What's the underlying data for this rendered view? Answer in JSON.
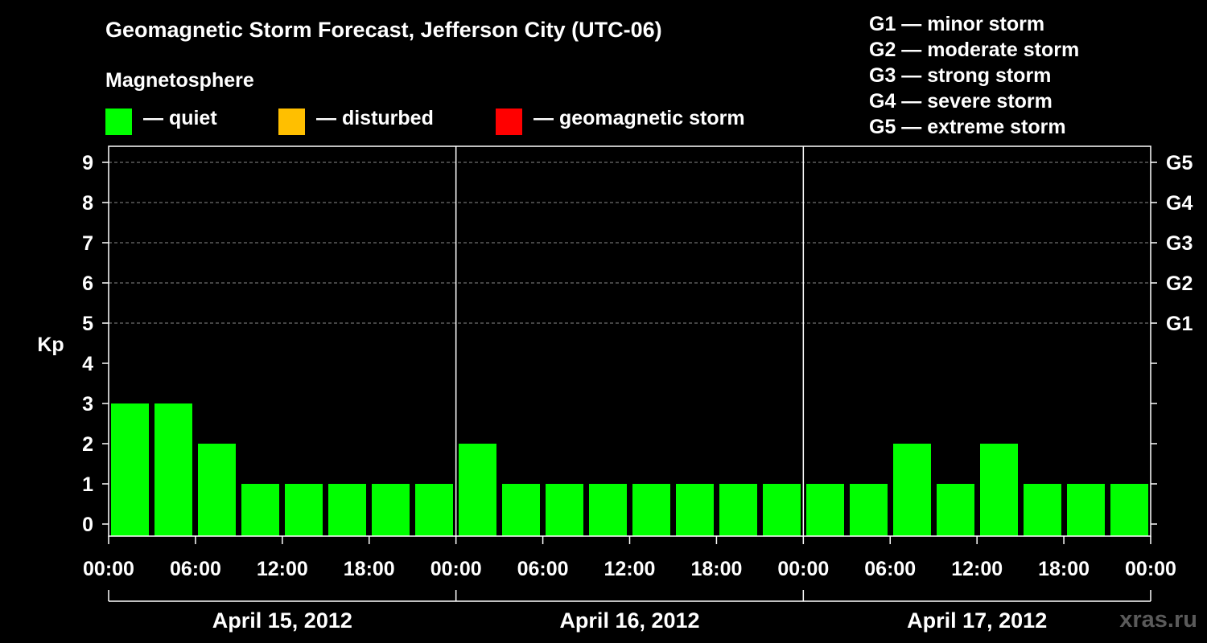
{
  "chart_data": {
    "type": "bar",
    "title": "Geomagnetic Storm Forecast, Jefferson City (UTC-06)",
    "subtitle": "Magnetosphere",
    "ylabel": "Kp",
    "ylim": [
      0,
      9
    ],
    "yticks": [
      "0",
      "1",
      "2",
      "3",
      "4",
      "5",
      "6",
      "7",
      "8",
      "9"
    ],
    "right_ticks": [
      {
        "kp": 5,
        "label": "G1"
      },
      {
        "kp": 6,
        "label": "G2"
      },
      {
        "kp": 7,
        "label": "G3"
      },
      {
        "kp": 8,
        "label": "G4"
      },
      {
        "kp": 9,
        "label": "G5"
      }
    ],
    "xtick_labels": [
      "00:00",
      "06:00",
      "12:00",
      "18:00",
      "00:00",
      "06:00",
      "12:00",
      "18:00",
      "00:00",
      "06:00",
      "12:00",
      "18:00",
      "00:00"
    ],
    "days": [
      "April 15, 2012",
      "April 16, 2012",
      "April 17, 2012"
    ],
    "interval_hours": 3,
    "values": [
      3,
      3,
      2,
      1,
      1,
      1,
      1,
      1,
      2,
      1,
      1,
      1,
      1,
      1,
      1,
      1,
      1,
      1,
      2,
      1,
      2,
      1,
      1,
      1
    ],
    "legend": [
      {
        "label": "— quiet",
        "color": "#00ff00"
      },
      {
        "label": "— disturbed",
        "color": "#ffbf00"
      },
      {
        "label": "— geomagnetic storm",
        "color": "#ff0000"
      }
    ],
    "storm_scale": [
      "G1 — minor storm",
      "G2 — moderate storm",
      "G3 — strong storm",
      "G4 — severe storm",
      "G5 — extreme storm"
    ],
    "gridlines": true
  },
  "watermark": "xras.ru"
}
